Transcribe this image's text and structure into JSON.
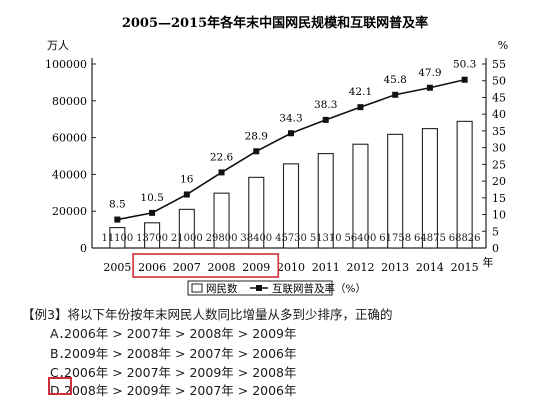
{
  "chart_data": {
    "type": "bar+line",
    "title": "2005—2015年各年末中国网民规模和互联网普及率",
    "left_axis_unit": "万人",
    "right_axis_unit": "%",
    "x_axis_unit": "年",
    "categories": [
      "2005",
      "2006",
      "2007",
      "2008",
      "2009",
      "2010",
      "2011",
      "2012",
      "2013",
      "2014",
      "2015"
    ],
    "left_ylim": [
      0,
      100000
    ],
    "left_ticks": [
      "0",
      "20000",
      "40000",
      "60000",
      "80000",
      "100000"
    ],
    "right_ylim": [
      0,
      55
    ],
    "right_ticks": [
      "0",
      "5",
      "10",
      "15",
      "20",
      "25",
      "30",
      "35",
      "40",
      "45",
      "50",
      "55"
    ],
    "series": [
      {
        "name": "网民数",
        "kind": "bar",
        "axis": "left",
        "values": [
          11100,
          13700,
          21000,
          29800,
          38400,
          45730,
          51310,
          56400,
          61758,
          64875,
          68826
        ],
        "labels": [
          "11100",
          "13700",
          "21000",
          "29800",
          "38400",
          "45730",
          "51310",
          "56400",
          "61758",
          "64875",
          "68826"
        ]
      },
      {
        "name": "互联网普及率（%）",
        "kind": "line",
        "axis": "right",
        "values": [
          8.5,
          10.5,
          16,
          22.6,
          28.9,
          34.3,
          38.3,
          42.1,
          45.8,
          47.9,
          50.3
        ],
        "labels": [
          "8.5",
          "10.5",
          "16",
          "22.6",
          "28.9",
          "34.3",
          "38.3",
          "42.1",
          "45.8",
          "47.9",
          "50.3"
        ]
      }
    ],
    "grid": false,
    "legend_position": "bottom",
    "highlight_categories": [
      "2006",
      "2007",
      "2008",
      "2009"
    ],
    "highlight_color": "#d0303a"
  },
  "question": {
    "title": "【例3】将以下年份按年末网民人数同比增量从多到少排序，正确的",
    "options": [
      {
        "letter": "A．",
        "text": "2006年 > 2007年 > 2008年 > 2009年"
      },
      {
        "letter": "B．",
        "text": "2009年 > 2008年 > 2007年 > 2006年"
      },
      {
        "letter": "C．",
        "text": "2006年 > 2007年 > 2009年 > 2008年"
      },
      {
        "letter": "D．",
        "text": "2008年 > 2009年 > 2007年 > 2006年"
      }
    ],
    "marked_answer": "D"
  }
}
